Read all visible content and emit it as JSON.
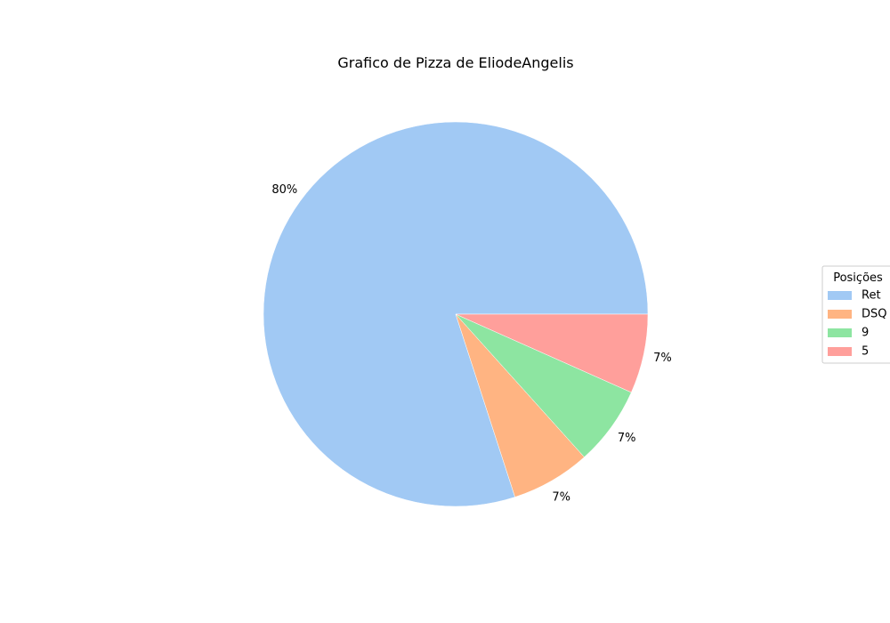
{
  "chart_data": {
    "type": "pie",
    "title": "Grafico de Pizza de EliodeAngelis",
    "categories": [
      "Ret",
      "DSQ",
      "9",
      "5"
    ],
    "values": [
      80,
      6.67,
      6.67,
      6.67
    ],
    "labels": [
      "80%",
      "7%",
      "7%",
      "7%"
    ],
    "colors": [
      "#a1c9f4",
      "#ffb482",
      "#8de5a1",
      "#ff9f9b"
    ],
    "start_angle_deg": 0,
    "direction": "counterclockwise",
    "legend": {
      "title": "Posições",
      "placement": "center-right",
      "entries": [
        "Ret",
        "DSQ",
        "9",
        "5"
      ]
    }
  }
}
